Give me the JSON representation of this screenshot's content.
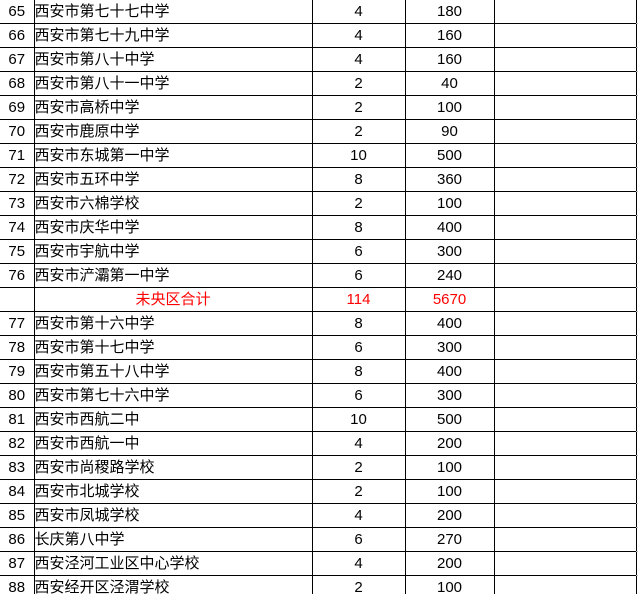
{
  "colors": {
    "background": "#ffffff",
    "border": "#000000",
    "text": "#000000",
    "summary_text": "#ff0000",
    "gridline": "#c0c0c0"
  },
  "table": {
    "columns": [
      "row-number",
      "school-name",
      "value-1",
      "value-2",
      "blank"
    ],
    "summary_label": "未央区合计",
    "rows": [
      {
        "no": "65",
        "name": "西安市第七十七中学",
        "v1": "4",
        "v2": "180",
        "summary": false
      },
      {
        "no": "66",
        "name": "西安市第七十九中学",
        "v1": "4",
        "v2": "160",
        "summary": false
      },
      {
        "no": "67",
        "name": "西安市第八十中学",
        "v1": "4",
        "v2": "160",
        "summary": false
      },
      {
        "no": "68",
        "name": "西安市第八十一中学",
        "v1": "2",
        "v2": "40",
        "summary": false
      },
      {
        "no": "69",
        "name": "西安市高桥中学",
        "v1": "2",
        "v2": "100",
        "summary": false
      },
      {
        "no": "70",
        "name": "西安市鹿原中学",
        "v1": "2",
        "v2": "90",
        "summary": false
      },
      {
        "no": "71",
        "name": "西安市东城第一中学",
        "v1": "10",
        "v2": "500",
        "summary": false
      },
      {
        "no": "72",
        "name": "西安市五环中学",
        "v1": "8",
        "v2": "360",
        "summary": false
      },
      {
        "no": "73",
        "name": "西安市六棉学校",
        "v1": "2",
        "v2": "100",
        "summary": false
      },
      {
        "no": "74",
        "name": "西安市庆华中学",
        "v1": "8",
        "v2": "400",
        "summary": false
      },
      {
        "no": "75",
        "name": "西安市宇航中学",
        "v1": "6",
        "v2": "300",
        "summary": false
      },
      {
        "no": "76",
        "name": "西安市浐灞第一中学",
        "v1": "6",
        "v2": "240",
        "summary": false
      },
      {
        "no": "",
        "name": "未央区合计",
        "v1": "114",
        "v2": "5670",
        "summary": true
      },
      {
        "no": "77",
        "name": "西安市第十六中学",
        "v1": "8",
        "v2": "400",
        "summary": false
      },
      {
        "no": "78",
        "name": "西安市第十七中学",
        "v1": "6",
        "v2": "300",
        "summary": false
      },
      {
        "no": "79",
        "name": "西安市第五十八中学",
        "v1": "8",
        "v2": "400",
        "summary": false
      },
      {
        "no": "80",
        "name": "西安市第七十六中学",
        "v1": "6",
        "v2": "300",
        "summary": false
      },
      {
        "no": "81",
        "name": "西安市西航二中",
        "v1": "10",
        "v2": "500",
        "summary": false
      },
      {
        "no": "82",
        "name": "西安市西航一中",
        "v1": "4",
        "v2": "200",
        "summary": false
      },
      {
        "no": "83",
        "name": "西安市尚稷路学校",
        "v1": "2",
        "v2": "100",
        "summary": false
      },
      {
        "no": "84",
        "name": "西安市北城学校",
        "v1": "2",
        "v2": "100",
        "summary": false
      },
      {
        "no": "85",
        "name": "西安市凤城学校",
        "v1": "4",
        "v2": "200",
        "summary": false
      },
      {
        "no": "86",
        "name": "长庆第八中学",
        "v1": "6",
        "v2": "270",
        "summary": false
      },
      {
        "no": "87",
        "name": "西安泾河工业区中心学校",
        "v1": "4",
        "v2": "200",
        "summary": false
      },
      {
        "no": "88",
        "name": "西安经开区泾渭学校",
        "v1": "2",
        "v2": "100",
        "summary": false
      }
    ]
  }
}
